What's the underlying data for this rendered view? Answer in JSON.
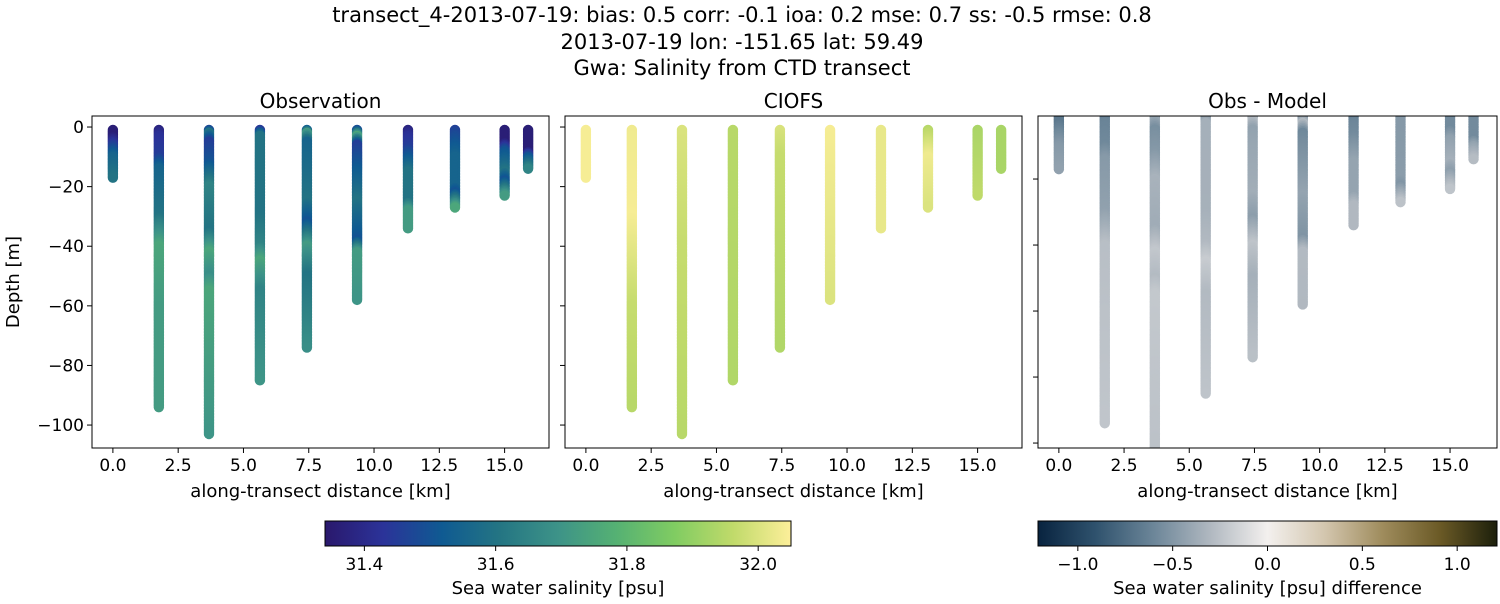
{
  "chart_data": {
    "type": "scatter",
    "title_lines": [
      "transect_4-2013-07-19: bias: 0.5  corr: -0.1  ioa: 0.2  mse: 0.7  ss: -0.5  rmse: 0.8",
      "2013-07-19 lon: -151.65 lat: 59.49",
      "Gwa: Salinity from CTD transect"
    ],
    "ylabel": "Depth [m]",
    "xlabel": "along-transect distance [km]",
    "panels": [
      {
        "title": "Observation",
        "xlim": [
          -0.8,
          16.7
        ],
        "ylim": [
          -107.7,
          3.7
        ],
        "yticks": [
          0,
          -20,
          -40,
          -60,
          -80,
          -100
        ],
        "show_ytick_labels": true,
        "field": "obs"
      },
      {
        "title": "CIOFS",
        "xlim": [
          -0.8,
          16.7
        ],
        "ylim": [
          -107.7,
          3.7
        ],
        "yticks": [
          0,
          -20,
          -40,
          -60,
          -80,
          -100
        ],
        "show_ytick_labels": false,
        "field": "model"
      },
      {
        "title": "Obs - Model",
        "xlim": [
          -0.8,
          16.8
        ],
        "ylim": [
          -101.5,
          -0.9
        ],
        "yticks": [
          -20,
          -40,
          -60,
          -80,
          -100
        ],
        "show_ytick_labels": false,
        "field": "diff"
      }
    ],
    "xticks": [
      0.0,
      2.5,
      5.0,
      7.5,
      10.0,
      12.5,
      15.0
    ],
    "xtick_labels": [
      "0.0",
      "2.5",
      "5.0",
      "7.5",
      "10.0",
      "12.5",
      "15.0"
    ],
    "ytick_labels": [
      "0",
      "−20",
      "−40",
      "−60",
      "−80",
      "−100"
    ],
    "casts": [
      {
        "x": 0.0,
        "bottom": -17,
        "obs": [
          [
            0,
            31.36
          ],
          [
            -3,
            31.36
          ],
          [
            -6,
            31.45
          ],
          [
            -10,
            31.55
          ],
          [
            -17,
            31.6
          ]
        ],
        "model": [
          [
            0,
            32.04
          ],
          [
            -17,
            32.04
          ]
        ]
      },
      {
        "x": 1.76,
        "bottom": -94,
        "obs": [
          [
            0,
            31.36
          ],
          [
            -3,
            31.42
          ],
          [
            -10,
            31.45
          ],
          [
            -14,
            31.55
          ],
          [
            -30,
            31.6
          ],
          [
            -40,
            31.75
          ],
          [
            -60,
            31.72
          ],
          [
            -94,
            31.72
          ]
        ],
        "model": [
          [
            0,
            32.03
          ],
          [
            -30,
            32.04
          ],
          [
            -60,
            31.97
          ],
          [
            -94,
            31.95
          ]
        ]
      },
      {
        "x": 3.68,
        "bottom": -103,
        "obs": [
          [
            0,
            31.36
          ],
          [
            -2,
            31.6
          ],
          [
            -5,
            31.45
          ],
          [
            -12,
            31.5
          ],
          [
            -20,
            31.65
          ],
          [
            -35,
            31.6
          ],
          [
            -42,
            31.75
          ],
          [
            -50,
            31.68
          ],
          [
            -55,
            31.75
          ],
          [
            -103,
            31.7
          ]
        ],
        "model": [
          [
            0,
            32.0
          ],
          [
            -40,
            31.97
          ],
          [
            -103,
            31.95
          ]
        ]
      },
      {
        "x": 5.63,
        "bottom": -85,
        "obs": [
          [
            0,
            31.36
          ],
          [
            -3,
            31.6
          ],
          [
            -30,
            31.6
          ],
          [
            -40,
            31.65
          ],
          [
            -45,
            31.75
          ],
          [
            -55,
            31.65
          ],
          [
            -85,
            31.7
          ]
        ],
        "model": [
          [
            0,
            31.95
          ],
          [
            -85,
            31.94
          ]
        ]
      },
      {
        "x": 7.43,
        "bottom": -74,
        "obs": [
          [
            0,
            31.36
          ],
          [
            -2,
            31.72
          ],
          [
            -5,
            31.55
          ],
          [
            -25,
            31.6
          ],
          [
            -32,
            31.5
          ],
          [
            -40,
            31.72
          ],
          [
            -50,
            31.6
          ],
          [
            -74,
            31.68
          ]
        ],
        "model": [
          [
            0,
            32.0
          ],
          [
            -10,
            31.97
          ],
          [
            -74,
            31.94
          ]
        ]
      },
      {
        "x": 9.35,
        "bottom": -58,
        "obs": [
          [
            0,
            31.36
          ],
          [
            -3,
            31.75
          ],
          [
            -6,
            31.45
          ],
          [
            -12,
            31.5
          ],
          [
            -25,
            31.6
          ],
          [
            -38,
            31.5
          ],
          [
            -42,
            31.72
          ],
          [
            -58,
            31.7
          ]
        ],
        "model": [
          [
            0,
            32.04
          ],
          [
            -58,
            32.0
          ]
        ]
      },
      {
        "x": 11.3,
        "bottom": -34,
        "obs": [
          [
            0,
            31.36
          ],
          [
            -3,
            31.42
          ],
          [
            -7,
            31.45
          ],
          [
            -15,
            31.6
          ],
          [
            -25,
            31.6
          ],
          [
            -28,
            31.72
          ],
          [
            -34,
            31.72
          ]
        ],
        "model": [
          [
            0,
            32.02
          ],
          [
            -34,
            32.02
          ]
        ]
      },
      {
        "x": 13.1,
        "bottom": -27,
        "obs": [
          [
            0,
            31.45
          ],
          [
            -10,
            31.55
          ],
          [
            -20,
            31.55
          ],
          [
            -22,
            31.5
          ],
          [
            -27,
            31.75
          ]
        ],
        "model": [
          [
            0,
            31.94
          ],
          [
            -10,
            32.03
          ],
          [
            -27,
            32.0
          ]
        ]
      },
      {
        "x": 15.0,
        "bottom": -23,
        "obs": [
          [
            0,
            31.36
          ],
          [
            -5,
            31.36
          ],
          [
            -8,
            31.5
          ],
          [
            -15,
            31.6
          ],
          [
            -18,
            31.5
          ],
          [
            -23,
            31.72
          ]
        ],
        "model": [
          [
            0,
            31.93
          ],
          [
            -23,
            31.96
          ]
        ]
      },
      {
        "x": 15.9,
        "bottom": -14,
        "obs": [
          [
            0,
            31.36
          ],
          [
            -8,
            31.36
          ],
          [
            -10,
            31.5
          ],
          [
            -14,
            31.65
          ]
        ],
        "model": [
          [
            0,
            31.93
          ],
          [
            -14,
            31.93
          ]
        ]
      }
    ],
    "colorbars": [
      {
        "label": "Sea water salinity [psu]",
        "range": [
          31.34,
          32.05
        ],
        "ticks": [
          31.4,
          31.6,
          31.8,
          32.0
        ],
        "tick_labels": [
          "31.4",
          "31.6",
          "31.8",
          "32.0"
        ],
        "colors": [
          "#2a186c",
          "#2b3399",
          "#0f5a92",
          "#247583",
          "#3d9388",
          "#55b173",
          "#80cc62",
          "#c0da6a",
          "#fdef9a"
        ]
      },
      {
        "label": "Sea water salinity [psu] difference",
        "range": [
          -1.21,
          1.21
        ],
        "ticks": [
          -1.0,
          -0.5,
          0.0,
          0.5,
          1.0
        ],
        "tick_labels": [
          "−1.0",
          "−0.5",
          "0.0",
          "0.5",
          "1.0"
        ],
        "colors": [
          "#08233f",
          "#2f526d",
          "#6b8598",
          "#b0b8c0",
          "#f3f0ee",
          "#d3c6ae",
          "#9f8c5d",
          "#6b5a26",
          "#1c1f0b"
        ]
      }
    ]
  }
}
